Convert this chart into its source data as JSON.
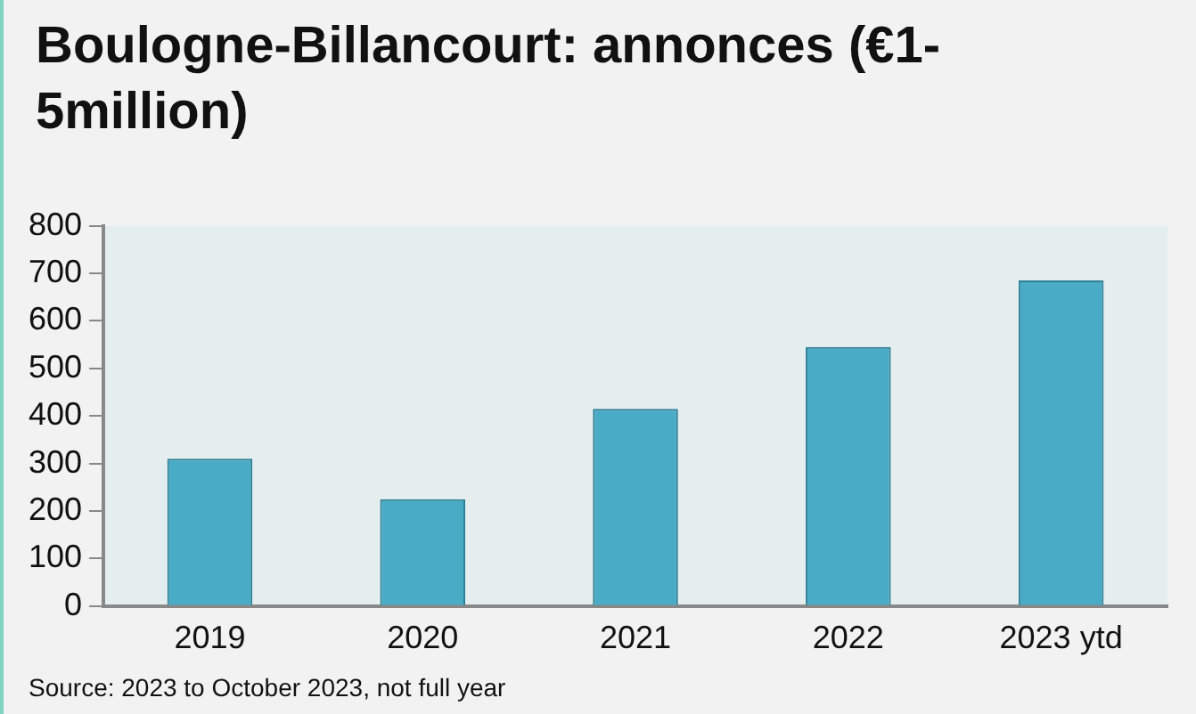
{
  "chart_data": {
    "type": "bar",
    "title": "Boulogne-Billancourt: annonces (€1-5million)",
    "categories": [
      "2019",
      "2020",
      "2021",
      "2022",
      "2023 ytd"
    ],
    "values": [
      310,
      225,
      415,
      545,
      685
    ],
    "color": "#4aabc6",
    "ylim": [
      0,
      800
    ],
    "yticks": [
      0,
      100,
      200,
      300,
      400,
      500,
      600,
      700,
      800
    ],
    "grid": false,
    "annotations": [
      "Source: 2023 to October 2023, not full year"
    ]
  }
}
